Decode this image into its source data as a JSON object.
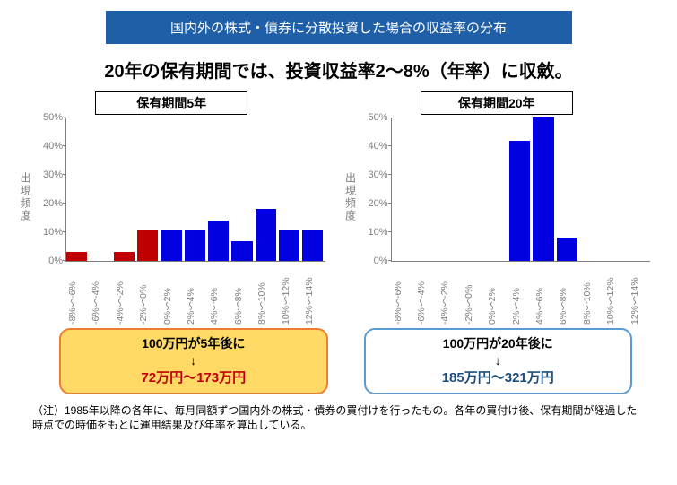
{
  "banner": {
    "text": "国内外の株式・債券に分散投資した場合の収益率の分布",
    "bg_color": "#1f5fa7"
  },
  "headline": "20年の保有期間では、投資収益率2～8%（年率）に収斂。",
  "axis": {
    "y_label": "出現頻度",
    "label_color": "#7f7f7f",
    "categories": [
      "-8%～-6%",
      "-6%～-4%",
      "-4%～-2%",
      "-2%～0%",
      "0%～2%",
      "2%～4%",
      "4%～6%",
      "6%～8%",
      "8%～10%",
      "10%～12%",
      "12%～14%"
    ]
  },
  "chart_left": {
    "title": "保有期間5年",
    "ymax": 50,
    "ytick_step": 10,
    "bars": [
      {
        "v": 3,
        "c": "#c00000"
      },
      {
        "v": 0,
        "c": "#c00000"
      },
      {
        "v": 3,
        "c": "#c00000"
      },
      {
        "v": 11,
        "c": "#c00000"
      },
      {
        "v": 11,
        "c": "#0000e0"
      },
      {
        "v": 11,
        "c": "#0000e0"
      },
      {
        "v": 14,
        "c": "#0000e0"
      },
      {
        "v": 7,
        "c": "#0000e0"
      },
      {
        "v": 18,
        "c": "#0000e0"
      },
      {
        "v": 11,
        "c": "#0000e0"
      },
      {
        "v": 11,
        "c": "#0000e0"
      }
    ]
  },
  "chart_right": {
    "title": "保有期間20年",
    "ymax": 50,
    "ytick_step": 10,
    "bars": [
      {
        "v": 0,
        "c": "#0000e0"
      },
      {
        "v": 0,
        "c": "#0000e0"
      },
      {
        "v": 0,
        "c": "#0000e0"
      },
      {
        "v": 0,
        "c": "#0000e0"
      },
      {
        "v": 0,
        "c": "#0000e0"
      },
      {
        "v": 42,
        "c": "#0000e0"
      },
      {
        "v": 50,
        "c": "#0000e0"
      },
      {
        "v": 8,
        "c": "#0000e0"
      },
      {
        "v": 0,
        "c": "#0000e0"
      },
      {
        "v": 0,
        "c": "#0000e0"
      },
      {
        "v": 0,
        "c": "#0000e0"
      }
    ]
  },
  "callout_left": {
    "line1": "100万円が5年後に",
    "arrow": "↓",
    "range": "72万円～173万円",
    "bg": "#ffd966",
    "border": "#ed7d31",
    "line1_color": "#000000",
    "range_color": "#c00000"
  },
  "callout_right": {
    "line1": "100万円が20年後に",
    "arrow": "↓",
    "range": "185万円～321万円",
    "bg": "#ffffff",
    "border": "#5b9bd5",
    "line1_color": "#000000",
    "range_color": "#1f4e79"
  },
  "footnote": "（注）1985年以降の各年に、毎月同額ずつ国内外の株式・債券の買付けを行ったもの。各年の買付け後、保有期間が経過した時点での時価をもとに運用結果及び年率を算出している。"
}
